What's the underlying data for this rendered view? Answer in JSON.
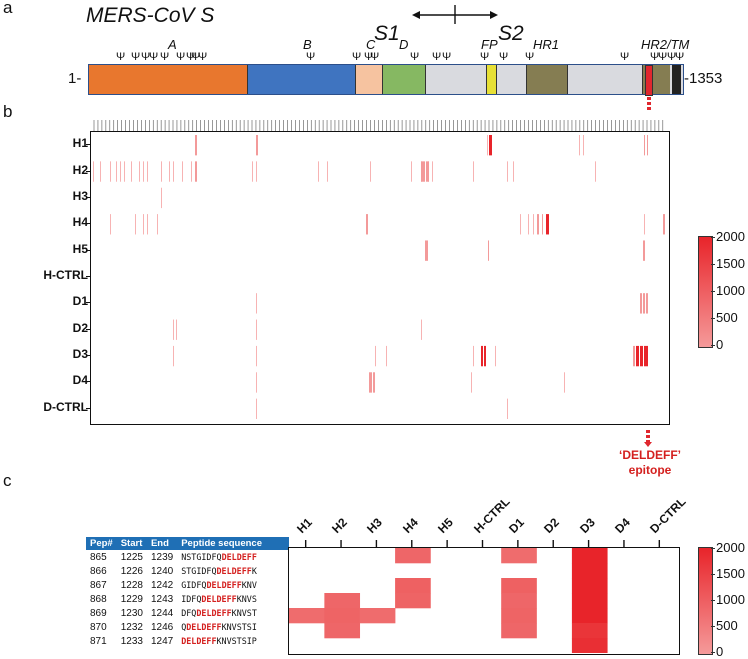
{
  "panel_a": {
    "label": "a",
    "title": "MERS-CoV S",
    "s1": "S1",
    "s2": "S2",
    "start": "1-",
    "end": "-1353",
    "domains": [
      "A",
      "B",
      "C",
      "D",
      "FP",
      "HR1",
      "HR2/TM"
    ],
    "glyco_symbol": "Ψ",
    "colors": {
      "A": "#e8772e",
      "B": "#3f74c0",
      "C": "#f6c3a0",
      "D": "#86b862",
      "FP": "#e7e036",
      "HR1": "#857d52",
      "HR2": "#857d52",
      "grey": "#d9dadf",
      "epitope": "#e0272e",
      "tm": "#222222"
    }
  },
  "panel_b": {
    "label": "b",
    "rows": [
      "H1",
      "H2",
      "H3",
      "H4",
      "H5",
      "H-CTRL",
      "D1",
      "D2",
      "D3",
      "D4",
      "D-CTRL"
    ],
    "epitope_label_line1": "‘DELDEFF’",
    "epitope_label_line2": "epitope",
    "colorbar": {
      "ticks": [
        "2000",
        "1500",
        "1000",
        "500",
        "0"
      ],
      "max": 2000,
      "min": 0,
      "color_high": "#e8242a",
      "color_low": "#f59a9a"
    }
  },
  "panel_c": {
    "label": "c",
    "table": {
      "headers": [
        "Pep#",
        "Start",
        "End",
        "Peptide sequence"
      ],
      "rows": [
        {
          "pep": "865",
          "start": "1225",
          "end": "1239",
          "pre": "NSTGIDFQ",
          "epi": "DELDEFF",
          "post": ""
        },
        {
          "pep": "866",
          "start": "1226",
          "end": "1240",
          "pre": "STGIDFQ",
          "epi": "DELDEFF",
          "post": "K"
        },
        {
          "pep": "867",
          "start": "1228",
          "end": "1242",
          "pre": "GIDFQ",
          "epi": "DELDEFF",
          "post": "KNV"
        },
        {
          "pep": "868",
          "start": "1229",
          "end": "1243",
          "pre": "IDFQ",
          "epi": "DELDEFF",
          "post": "KNVS"
        },
        {
          "pep": "869",
          "start": "1230",
          "end": "1244",
          "pre": "DFQ",
          "epi": "DELDEFF",
          "post": "KNVST"
        },
        {
          "pep": "870",
          "start": "1232",
          "end": "1246",
          "pre": "Q",
          "epi": "DELDEFF",
          "post": "KNVSTSI"
        },
        {
          "pep": "871",
          "start": "1233",
          "end": "1247",
          "pre": "",
          "epi": "DELDEFF",
          "post": "KNVSTSIP"
        }
      ]
    },
    "columns": [
      "H1",
      "H2",
      "H3",
      "H4",
      "H5",
      "H-CTRL",
      "D1",
      "D2",
      "D3",
      "D4",
      "D-CTRL"
    ],
    "heatmap_values": [
      [
        0,
        0,
        0,
        800,
        0,
        0,
        700,
        0,
        2000,
        0,
        0
      ],
      [
        0,
        0,
        0,
        0,
        0,
        0,
        0,
        0,
        2000,
        0,
        0
      ],
      [
        0,
        0,
        0,
        900,
        0,
        0,
        900,
        0,
        2000,
        0,
        0
      ],
      [
        0,
        800,
        0,
        850,
        0,
        0,
        800,
        0,
        2000,
        0,
        0
      ],
      [
        700,
        850,
        700,
        0,
        0,
        0,
        850,
        0,
        2000,
        0,
        0
      ],
      [
        0,
        800,
        0,
        0,
        0,
        0,
        800,
        0,
        1700,
        0,
        0
      ],
      [
        0,
        0,
        0,
        0,
        0,
        0,
        0,
        0,
        1800,
        0,
        0
      ]
    ],
    "colorbar": {
      "ticks": [
        "2000",
        "1500",
        "1000",
        "500",
        "0"
      ],
      "max": 2000,
      "min": 0
    }
  }
}
